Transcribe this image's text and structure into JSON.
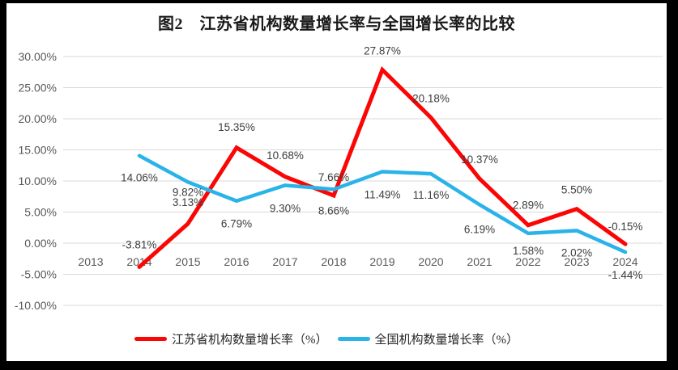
{
  "frame": {
    "outer_background": "#000000",
    "panel_background": "#ffffff"
  },
  "chart_data": {
    "type": "line",
    "title": "图2　江苏省机构数量增长率与全国增长率的比较",
    "categories": [
      "2013",
      "2014",
      "2015",
      "2016",
      "2017",
      "2018",
      "2019",
      "2020",
      "2021",
      "2022",
      "2023",
      "2024"
    ],
    "series": [
      {
        "name": "江苏省机构数量增长率（%）",
        "color": "#fb0505",
        "values": [
          null,
          -3.81,
          3.13,
          15.35,
          10.68,
          7.66,
          27.87,
          20.18,
          10.37,
          2.89,
          5.5,
          -0.15
        ],
        "labels": [
          null,
          "-3.81%",
          "3.13%",
          "15.35%",
          "10.68%",
          "7.66%",
          "27.87%",
          "20.18%",
          "10.37%",
          "2.89%",
          "5.50%",
          "-0.15%"
        ]
      },
      {
        "name": "全国机构数量增长率（%）",
        "color": "#2ab3e8",
        "values": [
          null,
          14.06,
          9.82,
          6.79,
          9.3,
          8.66,
          11.49,
          11.16,
          6.19,
          1.58,
          2.02,
          -1.44
        ],
        "labels": [
          null,
          "14.06%",
          "9.82%",
          "6.79%",
          "9.30%",
          "8.66%",
          "11.49%",
          "11.16%",
          "6.19%",
          "1.58%",
          "2.02%",
          "-1.44%"
        ]
      }
    ],
    "y_axis": {
      "min": -10,
      "max": 30,
      "step": 5,
      "ticks": [
        {
          "label": "30.00%",
          "value": 30
        },
        {
          "label": "25.00%",
          "value": 25
        },
        {
          "label": "20.00%",
          "value": 20
        },
        {
          "label": "15.00%",
          "value": 15
        },
        {
          "label": "10.00%",
          "value": 10
        },
        {
          "label": "5.00%",
          "value": 5
        },
        {
          "label": "0.00%",
          "value": 0
        },
        {
          "label": "-5.00%",
          "value": -5
        },
        {
          "label": "-10.00%",
          "value": -10
        }
      ]
    },
    "grid": "horizontal",
    "legend_position": "bottom",
    "style": {
      "grid_color": "#d9d9d9",
      "axis_text_color": "#595959",
      "data_label_color": "#3d3d3d",
      "title_color": "#1a1a1a"
    }
  }
}
